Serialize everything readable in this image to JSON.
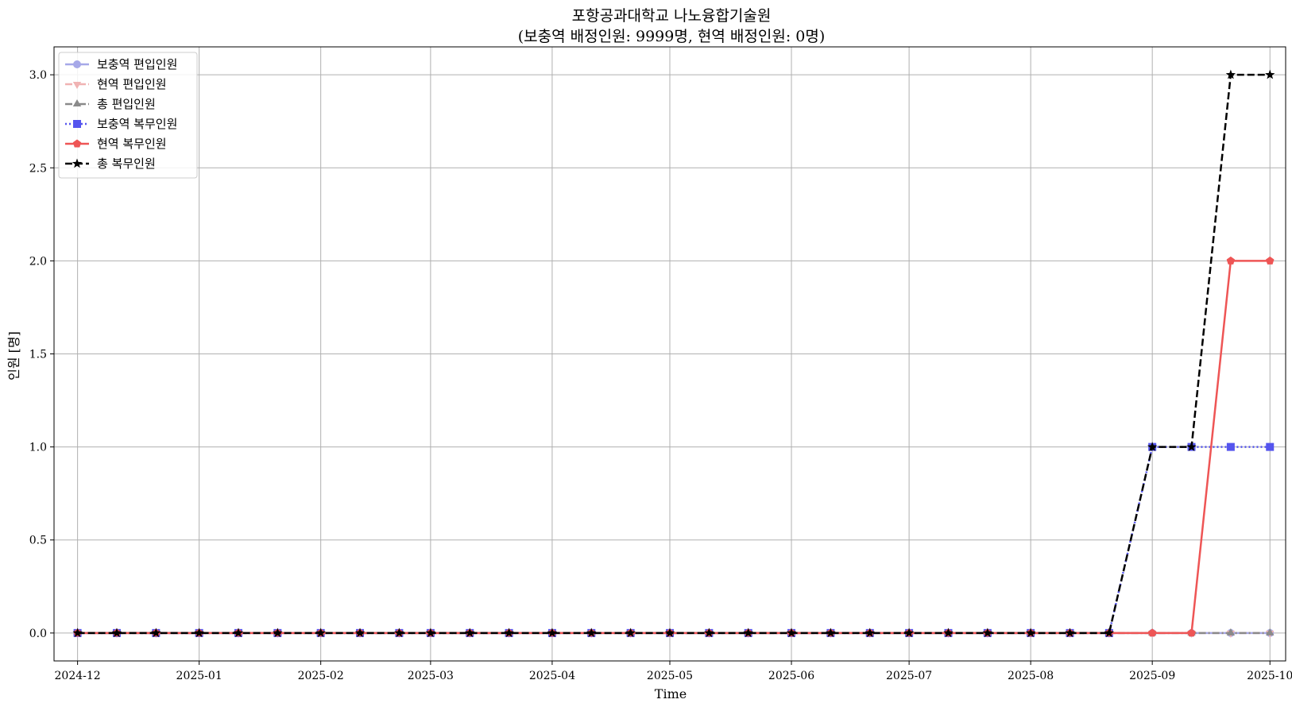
{
  "chart_data": {
    "type": "line",
    "title": "포항공과대학교 나노융합기술원",
    "subtitle": "(보충역 배정인원: 9999명, 현역 배정인원: 0명)",
    "xlabel": "Time",
    "ylabel": "인원 [명]",
    "ylim": [
      -0.15,
      3.15
    ],
    "xlim": [
      "2024-11-25",
      "2025-10-05"
    ],
    "grid": true,
    "legend_position": "top-left",
    "x_ticks": [
      "2024-12",
      "2025-01",
      "2025-02",
      "2025-03",
      "2025-04",
      "2025-05",
      "2025-06",
      "2025-07",
      "2025-08",
      "2025-09",
      "2025-10"
    ],
    "y_ticks": [
      "0.0",
      "0.5",
      "1.0",
      "1.5",
      "2.0",
      "2.5",
      "3.0"
    ],
    "x": [
      "2024-12-01",
      "2024-12-11",
      "2024-12-21",
      "2025-01-01",
      "2025-01-11",
      "2025-01-21",
      "2025-02-01",
      "2025-02-11",
      "2025-02-21",
      "2025-03-01",
      "2025-03-11",
      "2025-03-21",
      "2025-04-01",
      "2025-04-11",
      "2025-04-21",
      "2025-05-01",
      "2025-05-11",
      "2025-05-21",
      "2025-06-01",
      "2025-06-11",
      "2025-06-21",
      "2025-07-01",
      "2025-07-11",
      "2025-07-21",
      "2025-08-01",
      "2025-08-11",
      "2025-08-21",
      "2025-09-01",
      "2025-09-11",
      "2025-09-21",
      "2025-10-01"
    ],
    "series": [
      {
        "name": "보충역 편입인원",
        "color": "#a6a8e8",
        "marker": "circle",
        "dash": "solid",
        "values": [
          0,
          0,
          0,
          0,
          0,
          0,
          0,
          0,
          0,
          0,
          0,
          0,
          0,
          0,
          0,
          0,
          0,
          0,
          0,
          0,
          0,
          0,
          0,
          0,
          0,
          0,
          0,
          0,
          0,
          0,
          0
        ]
      },
      {
        "name": "현역 편입인원",
        "color": "#f0b3b3",
        "marker": "triangle-down",
        "dash": "dashdot",
        "values": [
          0,
          0,
          0,
          0,
          0,
          0,
          0,
          0,
          0,
          0,
          0,
          0,
          0,
          0,
          0,
          0,
          0,
          0,
          0,
          0,
          0,
          0,
          0,
          0,
          0,
          0,
          0,
          0,
          0,
          0,
          0
        ]
      },
      {
        "name": "총 편입인원",
        "color": "#8a8a8a",
        "marker": "triangle-up",
        "dash": "dashdot",
        "values": [
          0,
          0,
          0,
          0,
          0,
          0,
          0,
          0,
          0,
          0,
          0,
          0,
          0,
          0,
          0,
          0,
          0,
          0,
          0,
          0,
          0,
          0,
          0,
          0,
          0,
          0,
          0,
          0,
          0,
          0,
          0
        ]
      },
      {
        "name": "보충역 복무인원",
        "color": "#5555ee",
        "marker": "square",
        "dash": "dotted",
        "values": [
          0,
          0,
          0,
          0,
          0,
          0,
          0,
          0,
          0,
          0,
          0,
          0,
          0,
          0,
          0,
          0,
          0,
          0,
          0,
          0,
          0,
          0,
          0,
          0,
          0,
          0,
          0,
          1,
          1,
          1,
          1
        ]
      },
      {
        "name": "현역 복무인원",
        "color": "#ee5555",
        "marker": "pentagon",
        "dash": "solid",
        "values": [
          0,
          0,
          0,
          0,
          0,
          0,
          0,
          0,
          0,
          0,
          0,
          0,
          0,
          0,
          0,
          0,
          0,
          0,
          0,
          0,
          0,
          0,
          0,
          0,
          0,
          0,
          0,
          0,
          0,
          2,
          2
        ]
      },
      {
        "name": "총 복무인원",
        "color": "#000000",
        "marker": "star",
        "dash": "dashed",
        "values": [
          0,
          0,
          0,
          0,
          0,
          0,
          0,
          0,
          0,
          0,
          0,
          0,
          0,
          0,
          0,
          0,
          0,
          0,
          0,
          0,
          0,
          0,
          0,
          0,
          0,
          0,
          0,
          1,
          1,
          3,
          3
        ]
      }
    ]
  }
}
